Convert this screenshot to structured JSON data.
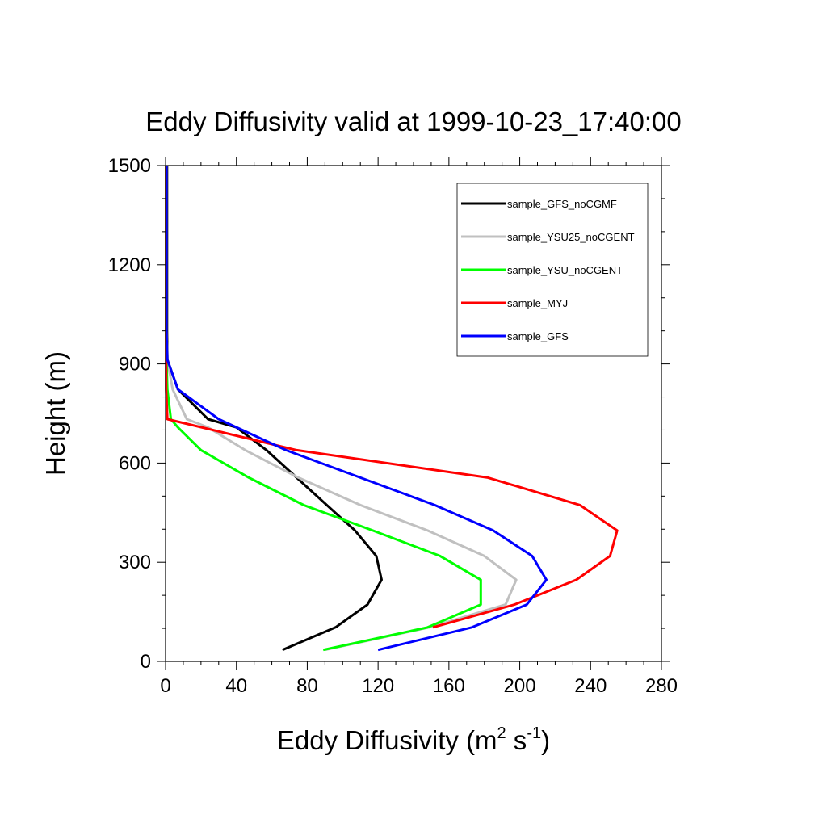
{
  "chart_data": {
    "type": "line",
    "title": "Eddy Diffusivity valid at 1999-10-23_17:40:00",
    "xlabel": {
      "main": "Eddy Diffusivity (m",
      "sup1": "2",
      "mid": " s",
      "sup2": "-1",
      "end": ")"
    },
    "ylabel": "Height (m)",
    "xlim": [
      0,
      280
    ],
    "ylim": [
      0,
      1500
    ],
    "xticks": [
      0,
      40,
      80,
      120,
      160,
      200,
      240,
      280
    ],
    "yticks": [
      0,
      300,
      600,
      900,
      1200,
      1500
    ],
    "x_tick_labels": [
      "0",
      "40",
      "80",
      "120",
      "160",
      "200",
      "240",
      "280"
    ],
    "y_tick_labels": [
      "0",
      "300",
      "600",
      "900",
      "1200",
      "1500"
    ],
    "legend_position": "top-right",
    "series": [
      {
        "name": "sample_GFS_noCGMF",
        "color": "#000000",
        "points": [
          [
            66,
            35
          ],
          [
            96,
            103
          ],
          [
            114,
            172
          ],
          [
            122,
            247
          ],
          [
            119,
            319
          ],
          [
            107,
            396
          ],
          [
            91,
            473
          ],
          [
            74,
            556
          ],
          [
            57,
            639
          ],
          [
            40,
            708
          ],
          [
            24,
            733
          ],
          [
            7,
            823
          ],
          [
            1,
            913
          ],
          [
            0.8,
            1000
          ],
          [
            0.8,
            1100
          ],
          [
            0.8,
            1200
          ],
          [
            0.8,
            1300
          ],
          [
            0.8,
            1400
          ],
          [
            0.8,
            1500
          ]
        ]
      },
      {
        "name": "sample_YSU25_noCGENT",
        "color": "#c0c0c0",
        "points": [
          [
            90,
            35
          ],
          [
            149,
            103
          ],
          [
            192,
            172
          ],
          [
            198,
            247
          ],
          [
            180,
            319
          ],
          [
            148,
            396
          ],
          [
            110,
            473
          ],
          [
            75,
            556
          ],
          [
            45,
            639
          ],
          [
            24,
            708
          ],
          [
            12,
            733
          ],
          [
            4,
            823
          ],
          [
            1,
            913
          ],
          [
            0.5,
            1000
          ],
          [
            0.5,
            1100
          ],
          [
            0.5,
            1200
          ],
          [
            0.5,
            1300
          ],
          [
            0.5,
            1400
          ],
          [
            0.5,
            1500
          ]
        ]
      },
      {
        "name": "sample_YSU_noCGENT",
        "color": "#00ff00",
        "points": [
          [
            89,
            35
          ],
          [
            148,
            103
          ],
          [
            178,
            172
          ],
          [
            178,
            247
          ],
          [
            155,
            319
          ],
          [
            117,
            396
          ],
          [
            78,
            473
          ],
          [
            47,
            556
          ],
          [
            20,
            639
          ],
          [
            7,
            708
          ],
          [
            3,
            733
          ],
          [
            1,
            823
          ],
          [
            0.5,
            913
          ],
          [
            0.3,
            1000
          ],
          [
            0.3,
            1100
          ],
          [
            0.3,
            1200
          ],
          [
            0.3,
            1300
          ],
          [
            0.3,
            1400
          ],
          [
            0.3,
            1500
          ]
        ]
      },
      {
        "name": "sample_MYJ",
        "color": "#ff0000",
        "points": [
          [
            151,
            103
          ],
          [
            197,
            172
          ],
          [
            232,
            247
          ],
          [
            251,
            319
          ],
          [
            255,
            396
          ],
          [
            234,
            473
          ],
          [
            182,
            556
          ],
          [
            74,
            639
          ],
          [
            1,
            733
          ],
          [
            0.3,
            823
          ],
          [
            0.3,
            913
          ],
          [
            0.3,
            1000
          ],
          [
            0.3,
            1100
          ],
          [
            0.3,
            1200
          ],
          [
            0.3,
            1300
          ],
          [
            0.3,
            1400
          ],
          [
            0.3,
            1500
          ]
        ]
      },
      {
        "name": "sample_GFS",
        "color": "#0000ff",
        "points": [
          [
            120,
            35
          ],
          [
            173,
            103
          ],
          [
            204,
            172
          ],
          [
            215,
            247
          ],
          [
            207,
            319
          ],
          [
            185,
            396
          ],
          [
            152,
            473
          ],
          [
            110,
            556
          ],
          [
            68,
            639
          ],
          [
            30,
            733
          ],
          [
            7,
            823
          ],
          [
            1,
            913
          ],
          [
            0.5,
            1000
          ],
          [
            0.5,
            1100
          ],
          [
            0.5,
            1200
          ],
          [
            0.5,
            1300
          ],
          [
            0.5,
            1400
          ],
          [
            0.5,
            1500
          ]
        ]
      }
    ]
  }
}
